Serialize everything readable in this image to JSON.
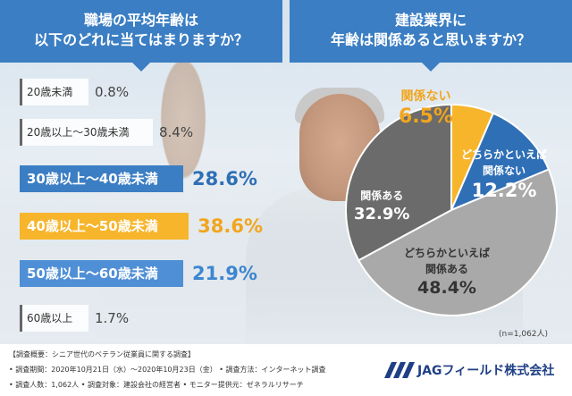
{
  "left_question": [
    "職場の平均年齢は",
    "以下のどれに当てはまりますか？"
  ],
  "right_question": [
    "建設業界に",
    "年齢は関係あると思いますか？"
  ],
  "chart_data": [
    {
      "type": "bar",
      "categories": [
        "20歳未満",
        "20歳以上～30歳未満",
        "30歳以上～40歳未満",
        "40歳以上～50歳未満",
        "50歳以上～60歳未満",
        "60歳以上"
      ],
      "values": [
        0.8,
        8.4,
        28.6,
        38.6,
        21.9,
        1.7
      ],
      "value_labels": [
        "0.8%",
        "8.4%",
        "28.6%",
        "38.6%",
        "21.9%",
        "1.7%"
      ],
      "title": "職場の平均年齢は以下のどれに当てはまりますか？",
      "colors": [
        "#ffffff",
        "#ffffff",
        "#3c7ec4",
        "#f7b52c",
        "#4f8fd6",
        "#ffffff"
      ],
      "value_colors": [
        "#444444",
        "#444444",
        "#2f6fb6",
        "#f2a51e",
        "#3d86d0",
        "#444444"
      ]
    },
    {
      "type": "pie",
      "categories": [
        "関係ない",
        "どちらかといえば関係ない",
        "どちらかといえば関係ある",
        "関係ある"
      ],
      "values": [
        6.5,
        12.2,
        48.4,
        32.9
      ],
      "value_labels": [
        "6.5%",
        "12.2%",
        "48.4%",
        "32.9%"
      ],
      "title": "建設業界に年齢は関係あると思いますか？",
      "colors": [
        "#f7b52c",
        "#2f6fb6",
        "#a9a9a9",
        "#6b6b6b"
      ]
    }
  ],
  "pie_labels": {
    "not_related": {
      "name": "関係ない",
      "value": "6.5%"
    },
    "somewhat_not": {
      "name1": "どちらかといえば",
      "name2": "関係ない",
      "value": "12.2%"
    },
    "somewhat_related": {
      "name1": "どちらかといえば",
      "name2": "関係ある",
      "value": "48.4%"
    },
    "related": {
      "name": "関係ある",
      "value": "32.9%"
    }
  },
  "sample_note": "(n=1,062人)",
  "footer": {
    "line1": "【調査概要：シニア世代のベテラン従業員に関する調査】",
    "line2": "• 調査期間：2020年10月21日（水）～2020年10月23日（金） • 調査方法：インターネット調査",
    "line3": "• 調査人数：1,062人 • 調査対象：建設会社の経営者 • モニター提供元：ゼネラルリサーチ"
  },
  "logo_text": "JAGフィールド株式会社"
}
